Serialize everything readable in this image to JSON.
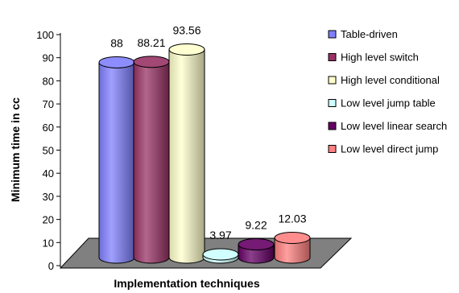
{
  "chart_data": {
    "type": "bar",
    "style": "3d-cylinder",
    "title": "",
    "xlabel": "Implementation techniques",
    "ylabel": "Minimum time in cc",
    "ylim": [
      0,
      100
    ],
    "yticks": [
      0,
      10,
      20,
      30,
      40,
      50,
      60,
      70,
      80,
      90,
      100
    ],
    "ytick_labels": [
      "0",
      "10",
      "20",
      "30",
      "40",
      "50",
      "60",
      "70",
      "80",
      "90",
      "100"
    ],
    "grid": false,
    "legend_position": "right",
    "series": [
      {
        "name": "Table-driven",
        "value": 88,
        "label": "88",
        "color": "#8080ff"
      },
      {
        "name": "High level switch",
        "value": 88.21,
        "label": "88.21",
        "color": "#993366"
      },
      {
        "name": "High level conditional",
        "value": 93.56,
        "label": "93.56",
        "color": "#ffffcc"
      },
      {
        "name": "Low level jump table",
        "value": 3.97,
        "label": "3.97",
        "color": "#ccffff"
      },
      {
        "name": "Low level linear search",
        "value": 9.22,
        "label": "9.22",
        "color": "#660066"
      },
      {
        "name": "Low level direct jump",
        "value": 12.03,
        "label": "12.03",
        "color": "#ff8080"
      }
    ],
    "floor_color": "#808080"
  }
}
